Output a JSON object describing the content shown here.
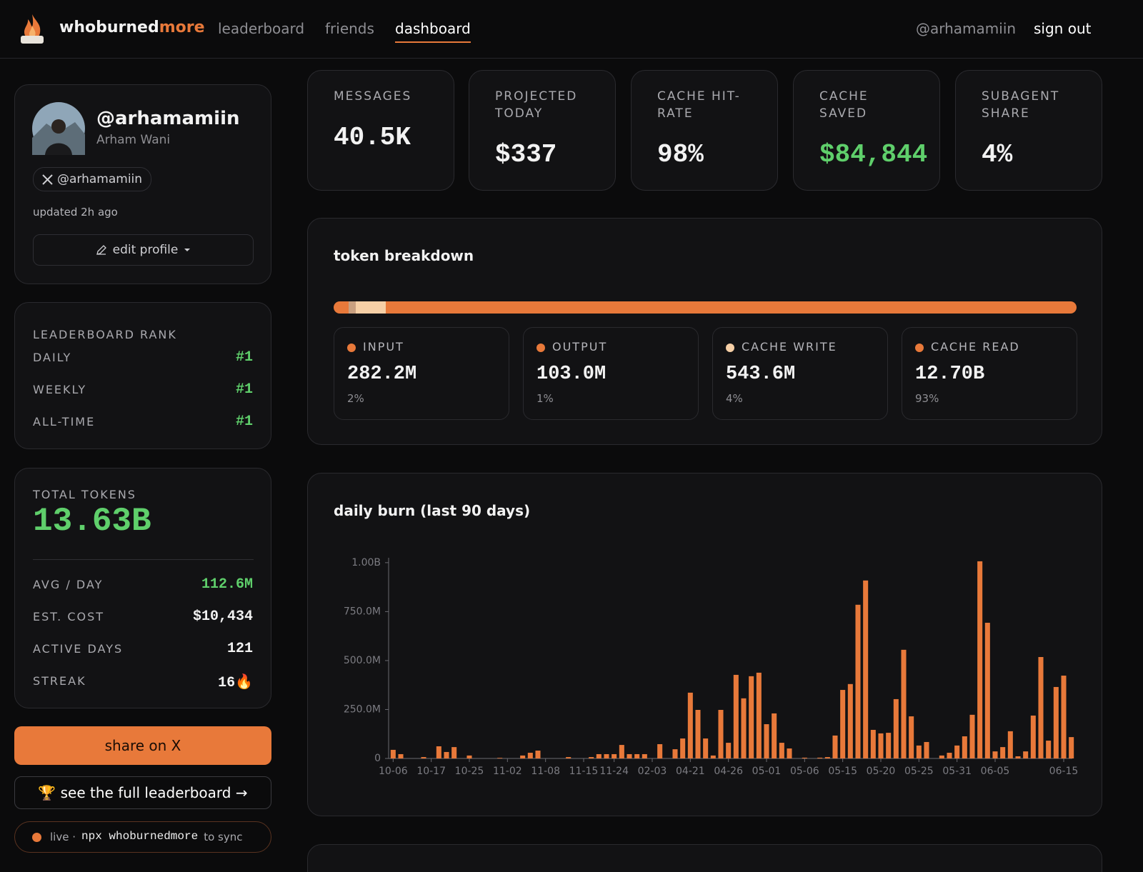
{
  "nav": {
    "brand": "whoburned",
    "brand_accent": "more",
    "links": [
      "leaderboard",
      "friends",
      "dashboard"
    ],
    "user": "@arhamamiin",
    "sign_out": "sign out"
  },
  "profile": {
    "handle": "@arhamamiin",
    "name": "Arham Wani",
    "x_handle": "@arhamamiin",
    "updated": "updated 2h ago",
    "edit": "edit profile"
  },
  "rank": {
    "title": "LEADERBOARD RANK",
    "rows": [
      {
        "label": "DAILY",
        "value": "#1"
      },
      {
        "label": "WEEKLY",
        "value": "#1"
      },
      {
        "label": "ALL-TIME",
        "value": "#1"
      }
    ]
  },
  "totals": {
    "label": "TOTAL TOKENS",
    "value": "13.63B",
    "rows": [
      {
        "label": "AVG / DAY",
        "value": "112.6M"
      },
      {
        "label": "EST. COST",
        "value": "$10,434"
      },
      {
        "label": "ACTIVE DAYS",
        "value": "121"
      },
      {
        "label": "STREAK",
        "value": "16🔥"
      }
    ]
  },
  "actions": {
    "share": "share on X",
    "leaderboard": "🏆 see the full leaderboard →",
    "live": "live ·",
    "command": "npx whoburnedmore",
    "sync": "to sync"
  },
  "stats": [
    {
      "label": "MESSAGES",
      "value": "40.5K"
    },
    {
      "label": "PROJECTED TODAY",
      "value": "$337"
    },
    {
      "label": "CACHE HIT-RATE",
      "value": "98%"
    },
    {
      "label": "CACHE SAVED",
      "value": "$84,844"
    },
    {
      "label": "SUBAGENT SHARE",
      "value": "4%"
    }
  ],
  "breakdown": {
    "title": "token breakdown",
    "items": [
      {
        "label": "INPUT",
        "value": "282.2M",
        "color": "#e8793a"
      },
      {
        "label": "OUTPUT",
        "value": "103.0M",
        "color": "#e8793a"
      },
      {
        "label": "CACHE WRITE",
        "value": "543.6M",
        "color": "#f6cfa6"
      },
      {
        "label": "CACHE READ",
        "value": "12.70B",
        "color": "#e8793a"
      }
    ],
    "share": [
      2,
      1,
      4,
      93
    ],
    "share_labels": [
      "2%",
      "1%",
      "4%",
      "93%"
    ],
    "bar_colors": [
      "#e8793a",
      "#c9a080",
      "#f6cfa6",
      "#e8793a"
    ]
  },
  "chart_data": {
    "type": "bar",
    "title": "daily burn (last 90 days)",
    "color": "#e8793a",
    "categories": [
      "10-06",
      null,
      null,
      null,
      null,
      "10-17",
      null,
      null,
      null,
      null,
      "10-25",
      null,
      null,
      null,
      null,
      "11-02",
      null,
      null,
      null,
      null,
      "11-08",
      null,
      null,
      null,
      null,
      "11-15",
      null,
      null,
      null,
      "11-24",
      null,
      null,
      null,
      null,
      "02-03",
      null,
      null,
      null,
      null,
      "04-21",
      null,
      null,
      null,
      null,
      "04-26",
      null,
      null,
      null,
      null,
      "05-01",
      null,
      null,
      null,
      null,
      "05-06",
      null,
      null,
      null,
      null,
      "05-15",
      null,
      null,
      null,
      null,
      "05-20",
      null,
      null,
      null,
      null,
      "05-25",
      null,
      null,
      null,
      null,
      "05-31",
      null,
      null,
      null,
      null,
      "06-05",
      null,
      null,
      null,
      null,
      null,
      null,
      null,
      null,
      "06-15",
      null
    ],
    "values": [
      44000000,
      22000000,
      0,
      0,
      7000000,
      0,
      62000000,
      33000000,
      58000000,
      0,
      15000000,
      0,
      0,
      0,
      3000000,
      0,
      0,
      15000000,
      29000000,
      40000000,
      0,
      0,
      0,
      7000000,
      0,
      0,
      7000000,
      22000000,
      22000000,
      22000000,
      69000000,
      22000000,
      22000000,
      22000000,
      0,
      73000000,
      0,
      47000000,
      102000000,
      336000000,
      248000000,
      102000000,
      15000000,
      248000000,
      80000000,
      427000000,
      307000000,
      420000000,
      438000000,
      175000000,
      230000000,
      80000000,
      51000000,
      0,
      4000000,
      0,
      4000000,
      7000000,
      117000000,
      350000000,
      380000000,
      785000000,
      909000000,
      146000000,
      128000000,
      131000000,
      303000000,
      555000000,
      215000000,
      66000000,
      84000000,
      0,
      15000000,
      29000000,
      66000000,
      113000000,
      223000000,
      1007000000,
      693000000,
      36000000,
      58000000,
      139000000,
      11000000,
      36000000,
      219000000,
      518000000,
      91000000,
      365000000,
      423000000,
      109000000
    ],
    "ylim": [
      0,
      1025000000
    ],
    "yticks": [
      0,
      {
        "value": 250000000,
        "label": "250.0M"
      },
      {
        "value": 500000000,
        "label": "500.0M"
      },
      {
        "value": 750000000,
        "label": "750.0M"
      },
      {
        "value": 1000000000,
        "label": "1.00B"
      }
    ],
    "grid": false
  }
}
